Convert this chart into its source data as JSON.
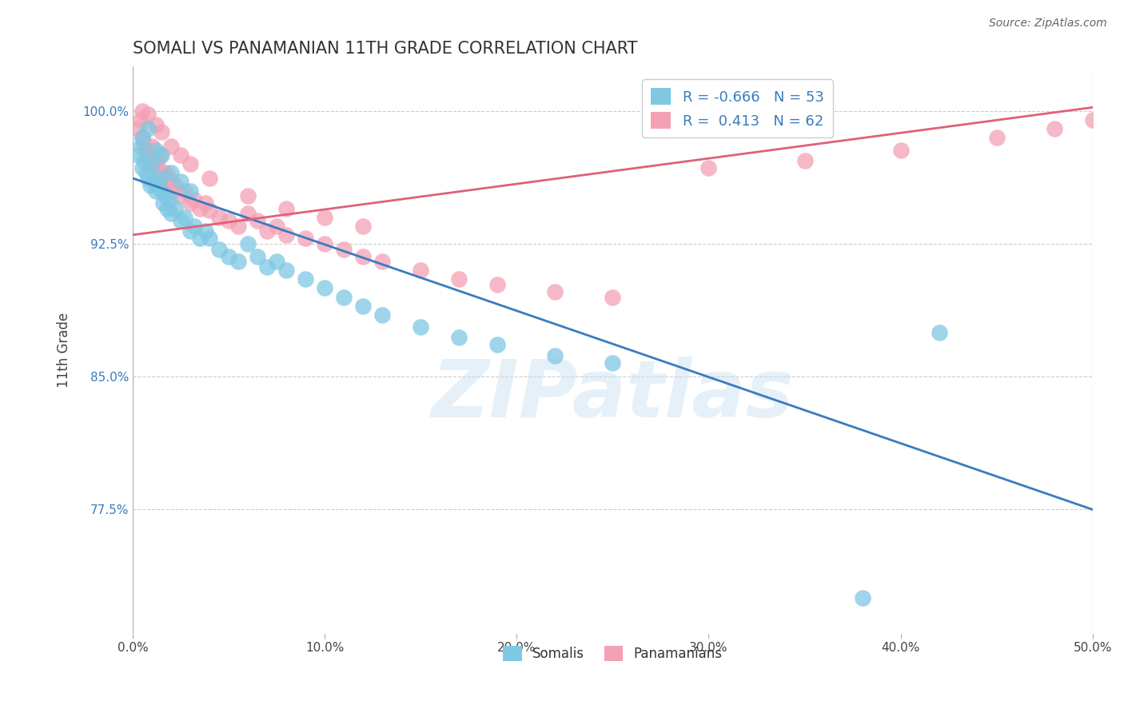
{
  "title": "SOMALI VS PANAMANIAN 11TH GRADE CORRELATION CHART",
  "source": "Source: ZipAtlas.com",
  "ylabel": "11th Grade",
  "xlim": [
    0.0,
    0.5
  ],
  "ylim": [
    0.705,
    1.025
  ],
  "xticks": [
    0.0,
    0.1,
    0.2,
    0.3,
    0.4,
    0.5
  ],
  "xticklabels": [
    "0.0%",
    "10.0%",
    "20.0%",
    "30.0%",
    "40.0%",
    "50.0%"
  ],
  "yticks": [
    0.775,
    0.85,
    0.925,
    1.0
  ],
  "yticklabels": [
    "77.5%",
    "85.0%",
    "92.5%",
    "100.0%"
  ],
  "somali_color": "#7ec8e3",
  "panamanian_color": "#f4a0b5",
  "somali_line_color": "#3a7bbf",
  "panamanian_line_color": "#e0607a",
  "legend_R_somali": "-0.666",
  "legend_N_somali": "53",
  "legend_R_panamanian": "0.413",
  "legend_N_panamanian": "62",
  "watermark": "ZIPatlas",
  "background_color": "#ffffff",
  "grid_color": "#cccccc",
  "somali_line_x0": 0.0,
  "somali_line_x1": 0.5,
  "somali_line_y0": 0.962,
  "somali_line_y1": 0.775,
  "panamanian_line_x0": 0.0,
  "panamanian_line_x1": 0.5,
  "panamanian_line_y0": 0.93,
  "panamanian_line_y1": 1.002,
  "somali_x": [
    0.003,
    0.004,
    0.005,
    0.006,
    0.007,
    0.008,
    0.009,
    0.01,
    0.011,
    0.012,
    0.013,
    0.014,
    0.015,
    0.016,
    0.017,
    0.018,
    0.019,
    0.02,
    0.022,
    0.025,
    0.027,
    0.03,
    0.032,
    0.035,
    0.038,
    0.04,
    0.045,
    0.05,
    0.055,
    0.06,
    0.065,
    0.07,
    0.075,
    0.08,
    0.09,
    0.1,
    0.11,
    0.12,
    0.13,
    0.15,
    0.17,
    0.19,
    0.22,
    0.25,
    0.005,
    0.008,
    0.012,
    0.015,
    0.02,
    0.025,
    0.03,
    0.38,
    0.42
  ],
  "somali_y": [
    0.975,
    0.98,
    0.968,
    0.972,
    0.965,
    0.962,
    0.958,
    0.97,
    0.96,
    0.955,
    0.958,
    0.962,
    0.955,
    0.948,
    0.952,
    0.945,
    0.95,
    0.942,
    0.945,
    0.938,
    0.94,
    0.932,
    0.935,
    0.928,
    0.932,
    0.928,
    0.922,
    0.918,
    0.915,
    0.925,
    0.918,
    0.912,
    0.915,
    0.91,
    0.905,
    0.9,
    0.895,
    0.89,
    0.885,
    0.878,
    0.872,
    0.868,
    0.862,
    0.858,
    0.985,
    0.99,
    0.978,
    0.975,
    0.965,
    0.96,
    0.955,
    0.725,
    0.875
  ],
  "panamanian_x": [
    0.003,
    0.004,
    0.005,
    0.006,
    0.007,
    0.008,
    0.009,
    0.01,
    0.011,
    0.012,
    0.013,
    0.014,
    0.015,
    0.016,
    0.017,
    0.018,
    0.019,
    0.02,
    0.022,
    0.025,
    0.027,
    0.03,
    0.032,
    0.035,
    0.038,
    0.04,
    0.045,
    0.05,
    0.055,
    0.06,
    0.065,
    0.07,
    0.075,
    0.08,
    0.09,
    0.1,
    0.11,
    0.12,
    0.13,
    0.15,
    0.17,
    0.19,
    0.22,
    0.25,
    0.005,
    0.008,
    0.012,
    0.015,
    0.02,
    0.025,
    0.03,
    0.04,
    0.06,
    0.08,
    0.1,
    0.12,
    0.3,
    0.35,
    0.4,
    0.45,
    0.48,
    0.5
  ],
  "panamanian_y": [
    0.99,
    0.995,
    0.985,
    0.982,
    0.978,
    0.975,
    0.97,
    0.98,
    0.972,
    0.968,
    0.972,
    0.975,
    0.965,
    0.962,
    0.965,
    0.958,
    0.962,
    0.955,
    0.958,
    0.952,
    0.955,
    0.948,
    0.95,
    0.945,
    0.948,
    0.944,
    0.94,
    0.938,
    0.935,
    0.942,
    0.938,
    0.932,
    0.935,
    0.93,
    0.928,
    0.925,
    0.922,
    0.918,
    0.915,
    0.91,
    0.905,
    0.902,
    0.898,
    0.895,
    1.0,
    0.998,
    0.992,
    0.988,
    0.98,
    0.975,
    0.97,
    0.962,
    0.952,
    0.945,
    0.94,
    0.935,
    0.968,
    0.972,
    0.978,
    0.985,
    0.99,
    0.995
  ]
}
